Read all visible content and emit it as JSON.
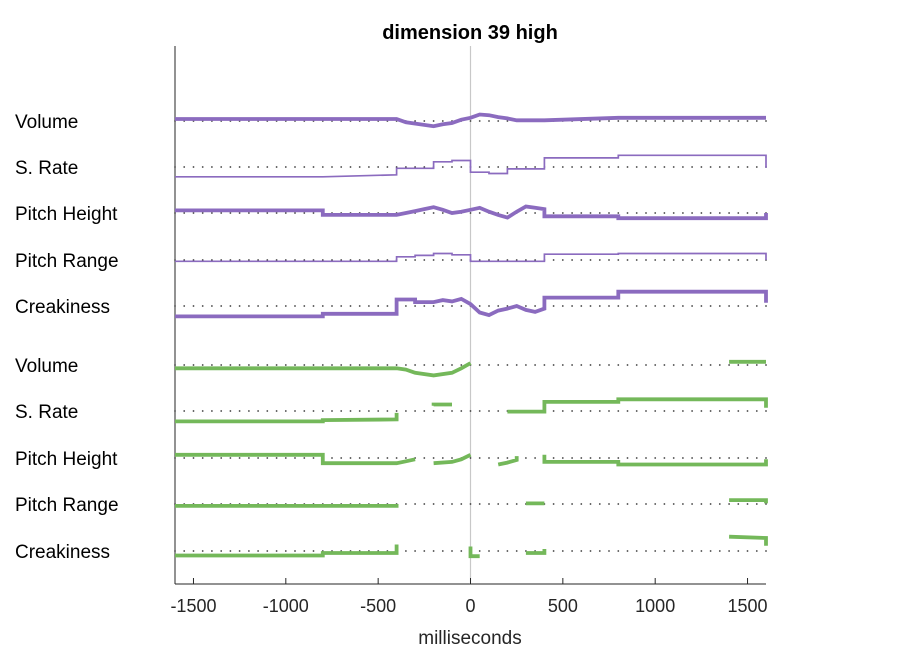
{
  "chart_data": {
    "type": "line",
    "title": "dimension 39 high",
    "xlabel": "milliseconds",
    "ylabel": "",
    "xlim": [
      -1600,
      1600
    ],
    "xticks": [
      -1500,
      -1000,
      -500,
      0,
      500,
      1000,
      1500
    ],
    "xtick_labels": [
      "-1500",
      "-1000",
      "-500",
      "0",
      "500",
      "1000",
      "1500"
    ],
    "grid": false,
    "legend": "none",
    "colors": {
      "purple": "#8b6bbf",
      "green": "#74b85a",
      "zero_line": "#c8c8c8",
      "baseline_dots": "#404040"
    },
    "series": [
      {
        "group": "purple",
        "label": "Volume",
        "thickness": "bold",
        "points": [
          [
            -1600,
            0.3
          ],
          [
            -400,
            0.3
          ],
          [
            -350,
            -0.2
          ],
          [
            -200,
            -0.8
          ],
          [
            -150,
            -0.5
          ],
          [
            -100,
            -0.3
          ],
          [
            -50,
            0.2
          ],
          [
            0,
            0.5
          ],
          [
            50,
            1.0
          ],
          [
            100,
            0.9
          ],
          [
            150,
            0.6
          ],
          [
            200,
            0.4
          ],
          [
            250,
            0.1
          ],
          [
            400,
            0.1
          ],
          [
            800,
            0.5
          ],
          [
            1600,
            0.5
          ]
        ]
      },
      {
        "group": "purple",
        "label": "S. Rate",
        "thickness": "thin",
        "points": [
          [
            -1600,
            -1.5
          ],
          [
            -800,
            -1.5
          ],
          [
            -400,
            -1.2
          ],
          [
            -400,
            -0.2
          ],
          [
            -200,
            -0.2
          ],
          [
            -200,
            0.8
          ],
          [
            -100,
            0.8
          ],
          [
            -100,
            1.0
          ],
          [
            0,
            1.0
          ],
          [
            0,
            -0.8
          ],
          [
            100,
            -0.8
          ],
          [
            100,
            -1.0
          ],
          [
            200,
            -1.0
          ],
          [
            200,
            -0.3
          ],
          [
            400,
            -0.3
          ],
          [
            400,
            1.4
          ],
          [
            800,
            1.4
          ],
          [
            800,
            1.8
          ],
          [
            1600,
            1.8
          ],
          [
            1600,
            -0.1
          ]
        ]
      },
      {
        "group": "purple",
        "label": "Pitch Height",
        "thickness": "bold",
        "points": [
          [
            -1600,
            0.4
          ],
          [
            -800,
            0.4
          ],
          [
            -800,
            -0.3
          ],
          [
            -400,
            -0.3
          ],
          [
            -350,
            0
          ],
          [
            -300,
            0.3
          ],
          [
            -250,
            0.6
          ],
          [
            -200,
            0.9
          ],
          [
            -150,
            0.5
          ],
          [
            -100,
            0
          ],
          [
            -50,
            0.2
          ],
          [
            0,
            0.5
          ],
          [
            50,
            0.8
          ],
          [
            100,
            0.2
          ],
          [
            150,
            -0.3
          ],
          [
            200,
            -0.7
          ],
          [
            250,
            0.2
          ],
          [
            300,
            1.0
          ],
          [
            350,
            0.8
          ],
          [
            400,
            0.6
          ],
          [
            400,
            -0.5
          ],
          [
            800,
            -0.5
          ],
          [
            800,
            -0.8
          ],
          [
            1600,
            -0.8
          ],
          [
            1600,
            0
          ]
        ]
      },
      {
        "group": "purple",
        "label": "Pitch Range",
        "thickness": "thin",
        "points": [
          [
            -1600,
            -0.2
          ],
          [
            -400,
            -0.2
          ],
          [
            -400,
            0.5
          ],
          [
            -300,
            0.5
          ],
          [
            -300,
            0.7
          ],
          [
            -200,
            0.7
          ],
          [
            -200,
            1.0
          ],
          [
            -100,
            1.0
          ],
          [
            -100,
            0.8
          ],
          [
            0,
            0.8
          ],
          [
            0,
            -0.2
          ],
          [
            400,
            -0.2
          ],
          [
            400,
            0.9
          ],
          [
            800,
            0.9
          ],
          [
            800,
            1.0
          ],
          [
            1600,
            1.0
          ],
          [
            1600,
            0
          ]
        ]
      },
      {
        "group": "purple",
        "label": "Creakiness",
        "thickness": "bold",
        "points": [
          [
            -1600,
            -1.6
          ],
          [
            -800,
            -1.6
          ],
          [
            -800,
            -1.2
          ],
          [
            -400,
            -1.2
          ],
          [
            -400,
            1.0
          ],
          [
            -300,
            1.0
          ],
          [
            -300,
            0.6
          ],
          [
            -200,
            0.6
          ],
          [
            -150,
            0.9
          ],
          [
            -100,
            0.7
          ],
          [
            -50,
            1.1
          ],
          [
            0,
            0.3
          ],
          [
            50,
            -1.0
          ],
          [
            100,
            -1.4
          ],
          [
            150,
            -0.7
          ],
          [
            200,
            -0.4
          ],
          [
            250,
            0
          ],
          [
            300,
            -0.6
          ],
          [
            350,
            -0.9
          ],
          [
            400,
            -0.4
          ],
          [
            400,
            1.3
          ],
          [
            800,
            1.3
          ],
          [
            800,
            2.2
          ],
          [
            1600,
            2.2
          ],
          [
            1600,
            0.5
          ]
        ]
      },
      {
        "group": "green",
        "label": "Volume",
        "thickness": "bold",
        "points": [
          [
            -1600,
            -0.5
          ],
          [
            -400,
            -0.5
          ],
          [
            -350,
            -0.7
          ],
          [
            -300,
            -1.2
          ],
          [
            -200,
            -1.6
          ],
          [
            -100,
            -1.2
          ],
          [
            -50,
            -0.5
          ],
          [
            0,
            0.3
          ],
          [
            null,
            null
          ],
          [
            1400,
            0.5
          ],
          [
            1600,
            0.5
          ]
        ]
      },
      {
        "group": "green",
        "label": "S. Rate",
        "thickness": "bold",
        "points": [
          [
            -1600,
            -1.6
          ],
          [
            -800,
            -1.6
          ],
          [
            -800,
            -1.4
          ],
          [
            -400,
            -1.3
          ],
          [
            -400,
            -0.3
          ],
          [
            null,
            null
          ],
          [
            -200,
            0.8
          ],
          [
            -200,
            1.0
          ],
          [
            -100,
            1.0
          ],
          [
            null,
            null
          ],
          [
            200,
            -0.1
          ],
          [
            400,
            -0.1
          ],
          [
            400,
            1.4
          ],
          [
            800,
            1.4
          ],
          [
            800,
            1.8
          ],
          [
            1600,
            1.8
          ],
          [
            1600,
            0.5
          ]
        ]
      },
      {
        "group": "green",
        "label": "Pitch Height",
        "thickness": "bold",
        "points": [
          [
            -1600,
            0.5
          ],
          [
            -800,
            0.5
          ],
          [
            -800,
            -0.8
          ],
          [
            -400,
            -0.8
          ],
          [
            -350,
            -0.5
          ],
          [
            -300,
            -0.2
          ],
          [
            null,
            null
          ],
          [
            -200,
            -0.8
          ],
          [
            -100,
            -0.6
          ],
          [
            -50,
            -0.2
          ],
          [
            0,
            0.5
          ],
          [
            null,
            null
          ],
          [
            150,
            -1.0
          ],
          [
            200,
            -0.7
          ],
          [
            250,
            -0.3
          ],
          [
            250,
            0.3
          ],
          [
            null,
            null
          ],
          [
            400,
            0.5
          ],
          [
            400,
            -0.6
          ],
          [
            800,
            -0.6
          ],
          [
            800,
            -1.0
          ],
          [
            1600,
            -1.0
          ],
          [
            1600,
            -0.2
          ]
        ]
      },
      {
        "group": "green",
        "label": "Pitch Range",
        "thickness": "bold",
        "points": [
          [
            -1600,
            -0.3
          ],
          [
            -400,
            -0.3
          ],
          [
            -400,
            0
          ],
          [
            null,
            null
          ],
          [
            300,
            0.1
          ],
          [
            400,
            0.1
          ],
          [
            null,
            null
          ],
          [
            1400,
            0.6
          ],
          [
            1600,
            0.6
          ],
          [
            1600,
            0.1
          ]
        ]
      },
      {
        "group": "green",
        "label": "Creakiness",
        "thickness": "bold",
        "points": [
          [
            -1600,
            -0.7
          ],
          [
            -800,
            -0.7
          ],
          [
            -800,
            -0.3
          ],
          [
            -400,
            -0.3
          ],
          [
            -400,
            1.0
          ],
          [
            null,
            null
          ],
          [
            0,
            0.7
          ],
          [
            0,
            -0.8
          ],
          [
            50,
            -0.8
          ],
          [
            null,
            null
          ],
          [
            300,
            -0.3
          ],
          [
            400,
            -0.3
          ],
          [
            400,
            0.3
          ],
          [
            null,
            null
          ],
          [
            1400,
            2.2
          ],
          [
            1600,
            2.0
          ],
          [
            1600,
            0.8
          ]
        ]
      }
    ]
  }
}
